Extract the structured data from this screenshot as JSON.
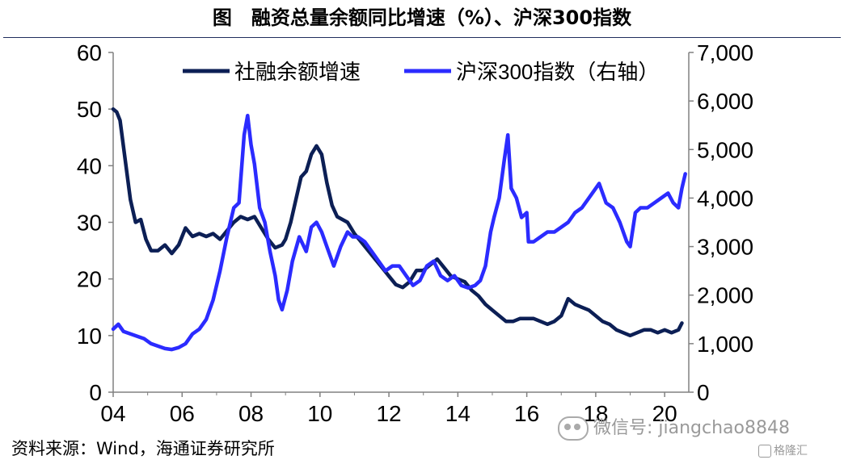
{
  "header": {
    "title": "图　融资总量余额同比增速（%）、沪深300指数"
  },
  "footer": {
    "source": "资料来源：Wind，海通证券研究所"
  },
  "watermark": {
    "text": "微信号: jiangchao8848",
    "icon": "wechat-icon"
  },
  "branding": {
    "text": "格隆汇",
    "icon": "gelonghui-logo-icon"
  },
  "colors": {
    "series_social": "#0c1f55",
    "series_csi": "#2b2bff",
    "axis": "#808080"
  },
  "chart_data": {
    "type": "line",
    "title": "",
    "xlabel": "",
    "ylabel": "",
    "x_ticks": [
      "04",
      "06",
      "08",
      "10",
      "12",
      "14",
      "16",
      "18",
      "20"
    ],
    "xlim": [
      2004.0,
      2020.7
    ],
    "y_left": {
      "ylim": [
        0,
        60
      ],
      "ticks": [
        "0",
        "10",
        "20",
        "30",
        "40",
        "50",
        "60"
      ]
    },
    "y_right": {
      "ylim": [
        0,
        7000
      ],
      "ticks": [
        "0",
        "1,000",
        "2,000",
        "3,000",
        "4,000",
        "5,000",
        "6,000",
        "7,000"
      ]
    },
    "grid": false,
    "legend": {
      "placement": "top",
      "entries": [
        "社融余额增速",
        "沪深300指数（右轴）"
      ]
    },
    "series": [
      {
        "name": "社融余额增速",
        "axis": "left",
        "x": [
          2004.0,
          2004.1,
          2004.2,
          2004.35,
          2004.5,
          2004.65,
          2004.8,
          2004.95,
          2005.1,
          2005.3,
          2005.5,
          2005.7,
          2005.9,
          2006.1,
          2006.3,
          2006.5,
          2006.7,
          2006.9,
          2007.1,
          2007.3,
          2007.5,
          2007.7,
          2007.9,
          2008.1,
          2008.3,
          2008.5,
          2008.7,
          2008.9,
          2009.0,
          2009.15,
          2009.3,
          2009.45,
          2009.6,
          2009.75,
          2009.9,
          2010.05,
          2010.2,
          2010.35,
          2010.5,
          2010.65,
          2010.8,
          2011.0,
          2011.2,
          2011.4,
          2011.6,
          2011.8,
          2012.0,
          2012.2,
          2012.4,
          2012.6,
          2012.8,
          2013.0,
          2013.2,
          2013.4,
          2013.6,
          2013.8,
          2014.0,
          2014.2,
          2014.4,
          2014.6,
          2014.8,
          2015.0,
          2015.2,
          2015.4,
          2015.6,
          2015.8,
          2016.0,
          2016.2,
          2016.4,
          2016.6,
          2016.8,
          2017.0,
          2017.2,
          2017.4,
          2017.6,
          2017.8,
          2018.0,
          2018.2,
          2018.4,
          2018.6,
          2018.8,
          2019.0,
          2019.2,
          2019.4,
          2019.6,
          2019.8,
          2020.0,
          2020.2,
          2020.4,
          2020.5
        ],
        "values": [
          50,
          49.5,
          48,
          41,
          34,
          30,
          30.5,
          27,
          25,
          25,
          26,
          24.5,
          26,
          29,
          27.5,
          28,
          27.5,
          28,
          27,
          28.5,
          30,
          31,
          30.5,
          31,
          29,
          27,
          25.5,
          26,
          27,
          30,
          34,
          38,
          39,
          42,
          43.5,
          42,
          37,
          33,
          31,
          30.5,
          30,
          28,
          26.5,
          25,
          23.5,
          22,
          20.5,
          19,
          18.5,
          19.5,
          21.5,
          21.5,
          22.5,
          23.5,
          22,
          20.5,
          20,
          19.5,
          18,
          17,
          15.5,
          14.5,
          13.5,
          12.5,
          12.5,
          13,
          13,
          13,
          12.5,
          12,
          12.5,
          13.5,
          16.5,
          15.5,
          15,
          14.5,
          13.5,
          12.5,
          12,
          11,
          10.5,
          10,
          10.5,
          11,
          11,
          10.5,
          11,
          10.5,
          11,
          12.2
        ]
      },
      {
        "name": "沪深300指数（右轴）",
        "axis": "right",
        "x": [
          2004.0,
          2004.15,
          2004.3,
          2004.5,
          2004.7,
          2004.9,
          2005.1,
          2005.3,
          2005.5,
          2005.7,
          2005.9,
          2006.1,
          2006.3,
          2006.5,
          2006.7,
          2006.9,
          2007.1,
          2007.3,
          2007.5,
          2007.65,
          2007.8,
          2007.9,
          2008.0,
          2008.1,
          2008.25,
          2008.4,
          2008.55,
          2008.7,
          2008.8,
          2008.9,
          2009.05,
          2009.2,
          2009.4,
          2009.6,
          2009.75,
          2009.9,
          2010.05,
          2010.2,
          2010.4,
          2010.6,
          2010.8,
          2010.95,
          2011.1,
          2011.3,
          2011.5,
          2011.7,
          2011.9,
          2012.1,
          2012.3,
          2012.5,
          2012.7,
          2012.9,
          2013.1,
          2013.3,
          2013.5,
          2013.7,
          2013.9,
          2014.1,
          2014.3,
          2014.5,
          2014.65,
          2014.8,
          2014.95,
          2015.05,
          2015.2,
          2015.35,
          2015.45,
          2015.55,
          2015.7,
          2015.85,
          2016.0,
          2016.05,
          2016.2,
          2016.4,
          2016.6,
          2016.8,
          2017.0,
          2017.2,
          2017.4,
          2017.6,
          2017.8,
          2018.0,
          2018.1,
          2018.3,
          2018.5,
          2018.7,
          2018.9,
          2019.0,
          2019.15,
          2019.3,
          2019.5,
          2019.7,
          2019.9,
          2020.1,
          2020.25,
          2020.4,
          2020.5,
          2020.6
        ],
        "values": [
          1300,
          1400,
          1250,
          1200,
          1150,
          1100,
          1000,
          950,
          900,
          880,
          920,
          1000,
          1200,
          1300,
          1500,
          1900,
          2500,
          3200,
          3800,
          3900,
          5300,
          5700,
          5100,
          4700,
          3800,
          3500,
          2900,
          2400,
          1900,
          1700,
          2100,
          2700,
          3200,
          2900,
          3400,
          3500,
          3300,
          3000,
          2600,
          3000,
          3300,
          3200,
          3200,
          3100,
          2900,
          2700,
          2500,
          2600,
          2600,
          2400,
          2200,
          2300,
          2600,
          2700,
          2400,
          2300,
          2400,
          2200,
          2150,
          2200,
          2300,
          2600,
          3300,
          3600,
          4000,
          4800,
          5300,
          4200,
          4000,
          3600,
          3700,
          3100,
          3100,
          3200,
          3300,
          3300,
          3400,
          3500,
          3700,
          3800,
          4000,
          4200,
          4300,
          3900,
          3800,
          3500,
          3100,
          3000,
          3700,
          3800,
          3800,
          3900,
          4000,
          4100,
          3900,
          3800,
          4200,
          4500
        ]
      }
    ]
  }
}
